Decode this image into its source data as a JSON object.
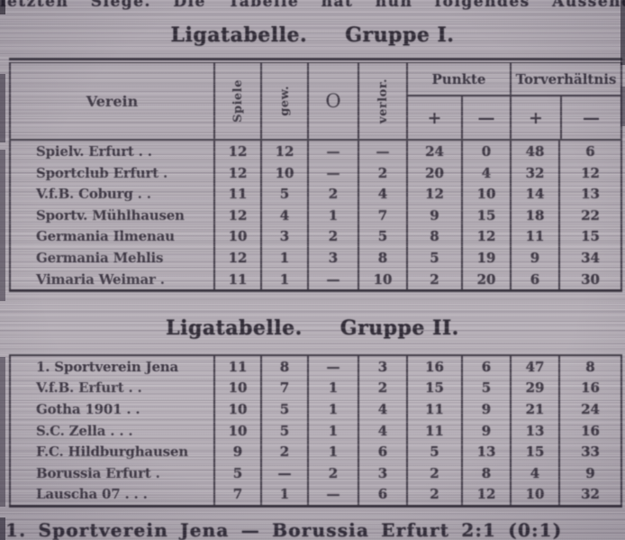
{
  "page": {
    "top_line": "letzten Siege. Die Tabelle hat nun folgendes Aussehen.",
    "bottom_line": "1. Sportverein Jena — Borussia Erfurt 2:1 (0:1)"
  },
  "header": {
    "verein": "Verein",
    "spiele": "Spiele",
    "gewonnen": "gew.",
    "unentschieden_symbol": "O",
    "verloren": "verlor.",
    "punkte": "Punkte",
    "torverhaeltnis": "Torverhältnis",
    "plus": "+",
    "minus": "—"
  },
  "group1": {
    "title_left": "Ligatabelle.",
    "title_right": "Gruppe I.",
    "rows": [
      {
        "verein": "Spielv. Erfurt .  .",
        "spiele": "12",
        "gew": "12",
        "unent": "—",
        "verl": "—",
        "pkt_plus": "24",
        "pkt_minus": "0",
        "tore_plus": "48",
        "tore_minus": "6"
      },
      {
        "verein": "Sportclub Erfurt  .",
        "spiele": "12",
        "gew": "10",
        "unent": "—",
        "verl": "2",
        "pkt_plus": "20",
        "pkt_minus": "4",
        "tore_plus": "32",
        "tore_minus": "12"
      },
      {
        "verein": "V.f.B. Coburg .  .",
        "spiele": "11",
        "gew": "5",
        "unent": "2",
        "verl": "4",
        "pkt_plus": "12",
        "pkt_minus": "10",
        "tore_plus": "14",
        "tore_minus": "13"
      },
      {
        "verein": "Sportv. Mühlhausen",
        "spiele": "12",
        "gew": "4",
        "unent": "1",
        "verl": "7",
        "pkt_plus": "9",
        "pkt_minus": "15",
        "tore_plus": "18",
        "tore_minus": "22"
      },
      {
        "verein": "Germania Ilmenau",
        "spiele": "10",
        "gew": "3",
        "unent": "2",
        "verl": "5",
        "pkt_plus": "8",
        "pkt_minus": "12",
        "tore_plus": "11",
        "tore_minus": "15"
      },
      {
        "verein": "Germania Mehlis",
        "spiele": "12",
        "gew": "1",
        "unent": "3",
        "verl": "8",
        "pkt_plus": "5",
        "pkt_minus": "19",
        "tore_plus": "9",
        "tore_minus": "34"
      },
      {
        "verein": "Vimaria Weimar .",
        "spiele": "11",
        "gew": "1",
        "unent": "—",
        "verl": "10",
        "pkt_plus": "2",
        "pkt_minus": "20",
        "tore_plus": "6",
        "tore_minus": "30"
      }
    ]
  },
  "group2": {
    "title_left": "Ligatabelle.",
    "title_right": "Gruppe II.",
    "rows": [
      {
        "verein": "1. Sportverein Jena",
        "spiele": "11",
        "gew": "8",
        "unent": "—",
        "verl": "3",
        "pkt_plus": "16",
        "pkt_minus": "6",
        "tore_plus": "47",
        "tore_minus": "8"
      },
      {
        "verein": "V.f.B. Erfurt .  .",
        "spiele": "10",
        "gew": "7",
        "unent": "1",
        "verl": "2",
        "pkt_plus": "15",
        "pkt_minus": "5",
        "tore_plus": "29",
        "tore_minus": "16"
      },
      {
        "verein": "Gotha 1901  .  .",
        "spiele": "10",
        "gew": "5",
        "unent": "1",
        "verl": "4",
        "pkt_plus": "11",
        "pkt_minus": "9",
        "tore_plus": "21",
        "tore_minus": "24"
      },
      {
        "verein": "S.C. Zella .  .  .",
        "spiele": "10",
        "gew": "5",
        "unent": "1",
        "verl": "4",
        "pkt_plus": "11",
        "pkt_minus": "9",
        "tore_plus": "13",
        "tore_minus": "16"
      },
      {
        "verein": "F.C. Hildburghausen",
        "spiele": "9",
        "gew": "2",
        "unent": "1",
        "verl": "6",
        "pkt_plus": "5",
        "pkt_minus": "13",
        "tore_plus": "15",
        "tore_minus": "33"
      },
      {
        "verein": "Borussia Erfurt  .",
        "spiele": "5",
        "gew": "—",
        "unent": "2",
        "verl": "3",
        "pkt_plus": "2",
        "pkt_minus": "8",
        "tore_plus": "4",
        "tore_minus": "9"
      },
      {
        "verein": "Lauscha 07 .  .  .",
        "spiele": "7",
        "gew": "1",
        "unent": "—",
        "verl": "6",
        "pkt_plus": "2",
        "pkt_minus": "12",
        "tore_plus": "10",
        "tore_minus": "32"
      }
    ]
  }
}
